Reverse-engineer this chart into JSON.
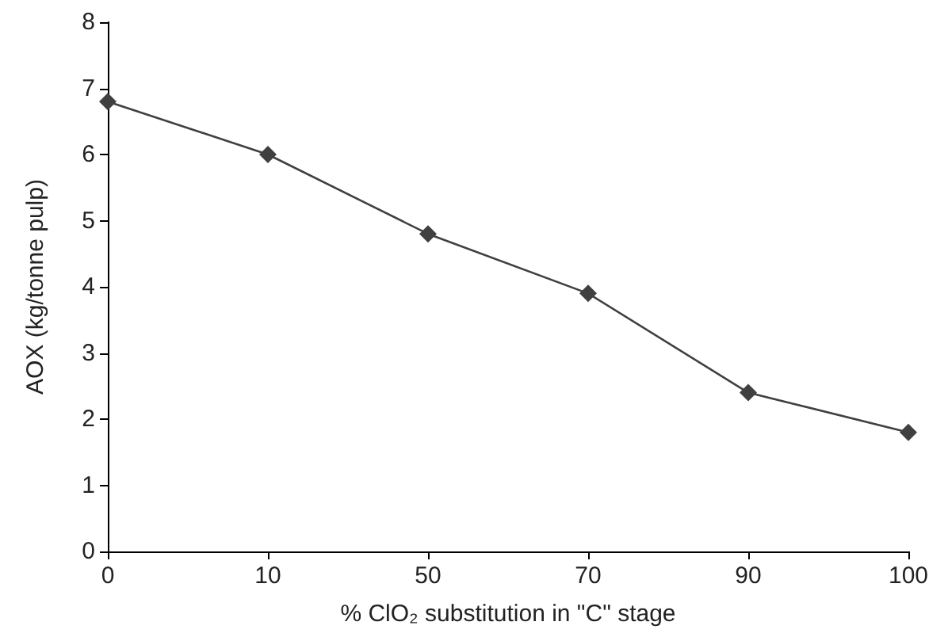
{
  "chart_data": {
    "type": "line",
    "xlabel": "% ClO₂ substitution in \"C\" stage",
    "ylabel": "AOX (kg/tonne pulp)",
    "categories": [
      "0",
      "10",
      "50",
      "70",
      "90",
      "100"
    ],
    "series": [
      {
        "color": "#404040",
        "values": [
          6.8,
          6.0,
          4.8,
          3.9,
          2.4,
          1.8
        ]
      }
    ],
    "ylim": [
      0,
      8
    ],
    "yticks": [
      0,
      1,
      2,
      3,
      4,
      5,
      6,
      7,
      8
    ],
    "grid": false,
    "marker": "diamond",
    "line_style": "solid"
  }
}
